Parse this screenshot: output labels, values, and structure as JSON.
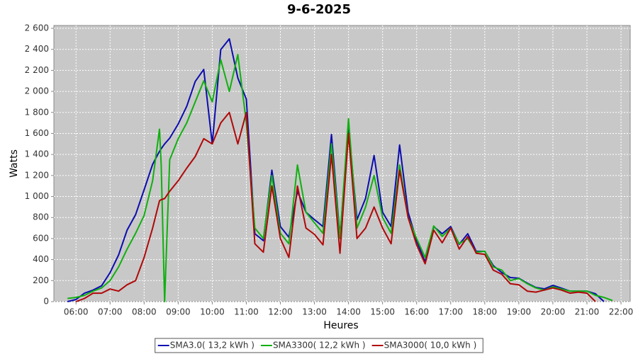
{
  "chart_data": {
    "type": "line",
    "title": "9-6-2025",
    "x_label": "Heures",
    "y_label": "Watts",
    "x": [
      5.75,
      6,
      6.25,
      6.5,
      6.75,
      7,
      7.25,
      7.5,
      7.75,
      8,
      8.25,
      8.45,
      8.5,
      8.6,
      8.75,
      9,
      9.25,
      9.5,
      9.75,
      10,
      10.25,
      10.5,
      10.75,
      11,
      11.25,
      11.5,
      11.75,
      12,
      12.25,
      12.5,
      12.75,
      13,
      13.25,
      13.5,
      13.75,
      14,
      14.25,
      14.5,
      14.75,
      15,
      15.25,
      15.5,
      15.75,
      16,
      16.25,
      16.5,
      16.75,
      17,
      17.25,
      17.5,
      17.75,
      18,
      18.25,
      18.5,
      18.75,
      19,
      19.25,
      19.5,
      19.75,
      20,
      20.25,
      20.5,
      20.75,
      21,
      21.25,
      21.5,
      21.75
    ],
    "series": [
      {
        "name": "SMA3.0( 13,2 kWh )",
        "color": "#0c0cb0",
        "values": [
          0,
          20,
          80,
          110,
          150,
          276,
          444,
          680,
          828,
          1064,
          1306,
          1430,
          1455,
          1500,
          1555,
          1690,
          1858,
          2094,
          2209,
          1500,
          2397,
          2500,
          2128,
          1926,
          646,
          580,
          1250,
          714,
          613,
          1050,
          850,
          780,
          714,
          1590,
          613,
          1656,
          780,
          983,
          1390,
          850,
          714,
          1490,
          850,
          580,
          377,
          714,
          646,
          714,
          545,
          646,
          478,
          478,
          343,
          276,
          229,
          222,
          175,
          135,
          121,
          155,
          128,
          100,
          100,
          100,
          74,
          0,
          null
        ]
      },
      {
        "name": "SMA3300( 12,2 kWh )",
        "color": "#10b010",
        "values": [
          30,
          40,
          60,
          100,
          130,
          200,
          330,
          500,
          650,
          820,
          1150,
          1640,
          1300,
          0,
          1350,
          1550,
          1700,
          1900,
          2100,
          1900,
          2300,
          2000,
          2350,
          1700,
          700,
          600,
          1200,
          650,
          550,
          1300,
          850,
          750,
          650,
          1500,
          600,
          1740,
          700,
          900,
          1200,
          800,
          650,
          1300,
          800,
          600,
          420,
          720,
          620,
          700,
          550,
          600,
          470,
          480,
          330,
          300,
          200,
          220,
          170,
          130,
          110,
          140,
          120,
          100,
          100,
          100,
          60,
          40,
          10
        ]
      },
      {
        "name": "SMA3000( 10,0 kWh )",
        "color": "#b00808",
        "values": [
          null,
          0,
          30,
          80,
          80,
          120,
          100,
          160,
          200,
          420,
          700,
          960,
          970,
          980,
          1050,
          1150,
          1270,
          1380,
          1550,
          1500,
          1700,
          1800,
          1500,
          1800,
          550,
          470,
          1100,
          600,
          420,
          1100,
          700,
          640,
          540,
          1400,
          460,
          1600,
          600,
          700,
          900,
          700,
          550,
          1250,
          800,
          540,
          360,
          680,
          560,
          700,
          500,
          620,
          460,
          450,
          300,
          260,
          170,
          160,
          100,
          90,
          110,
          130,
          110,
          80,
          90,
          80,
          0,
          null,
          null
        ]
      }
    ],
    "xlim": [
      5.35,
      22.27
    ],
    "xticks": [
      {
        "value": 6,
        "label": "06:00"
      },
      {
        "value": 7,
        "label": "07:00"
      },
      {
        "value": 8,
        "label": "08:00"
      },
      {
        "value": 9,
        "label": "09:00"
      },
      {
        "value": 10,
        "label": "10:00"
      },
      {
        "value": 11,
        "label": "11:00"
      },
      {
        "value": 12,
        "label": "12:00"
      },
      {
        "value": 13,
        "label": "13:00"
      },
      {
        "value": 14,
        "label": "14:00"
      },
      {
        "value": 15,
        "label": "15:00"
      },
      {
        "value": 16,
        "label": "16:00"
      },
      {
        "value": 17,
        "label": "17:00"
      },
      {
        "value": 18,
        "label": "18:00"
      },
      {
        "value": 19,
        "label": "19:00"
      },
      {
        "value": 20,
        "label": "20:00"
      },
      {
        "value": 21,
        "label": "21:00"
      },
      {
        "value": 22,
        "label": "22:00"
      }
    ],
    "ylim": [
      0,
      2627
    ],
    "yticks": [
      0,
      200,
      400,
      600,
      800,
      {
        "value": 1000,
        "label": "1 000"
      },
      {
        "value": 1200,
        "label": "1 200"
      },
      {
        "value": 1400,
        "label": "1 400"
      },
      {
        "value": 1600,
        "label": "1 600"
      },
      {
        "value": 1800,
        "label": "1 800"
      },
      {
        "value": 2000,
        "label": "2 000"
      },
      {
        "value": 2200,
        "label": "2 200"
      },
      {
        "value": 2400,
        "label": "2 400"
      },
      {
        "value": 2600,
        "label": "2 600"
      }
    ],
    "grid": true,
    "legend": "bottom",
    "plot_background": "#c8c8c8"
  }
}
